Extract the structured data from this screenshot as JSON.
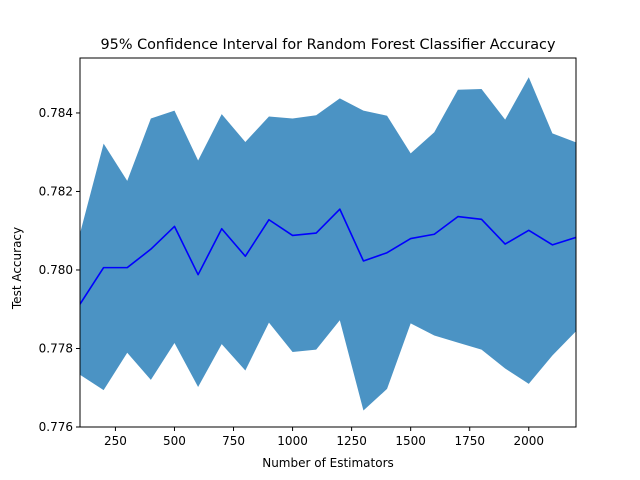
{
  "chart_data": {
    "type": "line",
    "title": "95% Confidence Interval for Random Forest Classifier Accuracy",
    "xlabel": "Number of Estimators",
    "ylabel": "Test Accuracy",
    "xlim": [
      100,
      2200
    ],
    "ylim": [
      0.776,
      0.7854
    ],
    "xticks": [
      250,
      500,
      750,
      1000,
      1250,
      1500,
      1750,
      2000
    ],
    "xtick_labels": [
      "250",
      "500",
      "750",
      "1000",
      "1250",
      "1500",
      "1750",
      "2000"
    ],
    "yticks": [
      0.776,
      0.778,
      0.78,
      0.782,
      0.784
    ],
    "ytick_labels": [
      "0.776",
      "0.778",
      "0.780",
      "0.782",
      "0.784"
    ],
    "grid": false,
    "x": [
      100,
      200,
      300,
      400,
      500,
      600,
      700,
      800,
      900,
      1000,
      1100,
      1200,
      1300,
      1400,
      1500,
      1600,
      1700,
      1800,
      1900,
      2000,
      2100,
      2200
    ],
    "series": [
      {
        "kind": "line",
        "color": "#0000ff",
        "values": [
          0.77913,
          0.78006,
          0.78006,
          0.78053,
          0.78111,
          0.77988,
          0.78105,
          0.78035,
          0.78128,
          0.78088,
          0.78094,
          0.78155,
          0.78023,
          0.78044,
          0.7808,
          0.78091,
          0.78136,
          0.78129,
          0.78066,
          0.78101,
          0.78064,
          0.78083
        ]
      },
      {
        "kind": "band",
        "color": "#4b93c4",
        "upper": [
          0.78093,
          0.78322,
          0.78227,
          0.78386,
          0.78406,
          0.78279,
          0.78397,
          0.78326,
          0.78391,
          0.78386,
          0.78394,
          0.78437,
          0.78406,
          0.78393,
          0.78297,
          0.78351,
          0.78459,
          0.78461,
          0.78383,
          0.78491,
          0.78348,
          0.78325
        ],
        "lower": [
          0.77733,
          0.77694,
          0.77789,
          0.7772,
          0.77814,
          0.77702,
          0.77811,
          0.77744,
          0.77866,
          0.77791,
          0.77797,
          0.77872,
          0.77642,
          0.77697,
          0.77864,
          0.77833,
          0.77815,
          0.77797,
          0.77749,
          0.7771,
          0.77782,
          0.77844
        ]
      }
    ]
  }
}
